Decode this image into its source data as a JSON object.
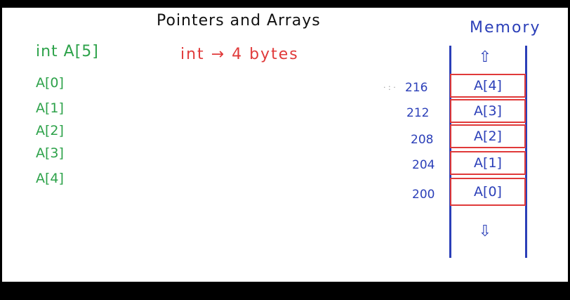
{
  "title": "Pointers and Arrays",
  "declaration": "int A[5]",
  "elements": [
    "A[0]",
    "A[1]",
    "A[2]",
    "A[3]",
    "A[4]"
  ],
  "size_note": "int → 4 bytes",
  "memory": {
    "label": "Memory",
    "up_arrow": "⇧",
    "down_arrow": "⇩",
    "cells": [
      {
        "address": "216",
        "label": "A[4]"
      },
      {
        "address": "212",
        "label": "A[3]"
      },
      {
        "address": "208",
        "label": "A[2]"
      },
      {
        "address": "204",
        "label": "A[1]"
      },
      {
        "address": "200",
        "label": "A[0]"
      }
    ]
  },
  "colors": {
    "green": "#2da24a",
    "red": "#e03a3a",
    "blue": "#2b3fb8"
  }
}
